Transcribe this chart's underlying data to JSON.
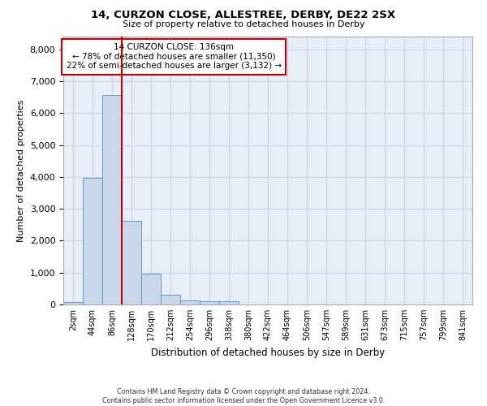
{
  "title": "14, CURZON CLOSE, ALLESTREE, DERBY, DE22 2SX",
  "subtitle": "Size of property relative to detached houses in Derby",
  "xlabel": "Distribution of detached houses by size in Derby",
  "ylabel": "Number of detached properties",
  "bin_labels": [
    "2sqm",
    "44sqm",
    "86sqm",
    "128sqm",
    "170sqm",
    "212sqm",
    "254sqm",
    "296sqm",
    "338sqm",
    "380sqm",
    "422sqm",
    "464sqm",
    "506sqm",
    "547sqm",
    "589sqm",
    "631sqm",
    "673sqm",
    "715sqm",
    "757sqm",
    "799sqm",
    "841sqm"
  ],
  "bar_heights": [
    70,
    3980,
    6580,
    2620,
    960,
    310,
    130,
    105,
    90,
    0,
    0,
    0,
    0,
    0,
    0,
    0,
    0,
    0,
    0,
    0,
    0
  ],
  "bar_color": "#c8d8ea",
  "bar_edgecolor": "#6699bb",
  "grid_color": "#c8d4e8",
  "bg_color": "#e8eef8",
  "vline_color": "#cc0000",
  "annotation_text": "14 CURZON CLOSE: 136sqm\n← 78% of detached houses are smaller (11,350)\n22% of semi-detached houses are larger (3,132) →",
  "annotation_box_color": "#cc0000",
  "ylim": [
    0,
    8400
  ],
  "yticks": [
    0,
    1000,
    2000,
    3000,
    4000,
    5000,
    6000,
    7000,
    8000
  ],
  "footer_line1": "Contains HM Land Registry data © Crown copyright and database right 2024.",
  "footer_line2": "Contains public sector information licensed under the Open Government Licence v3.0."
}
